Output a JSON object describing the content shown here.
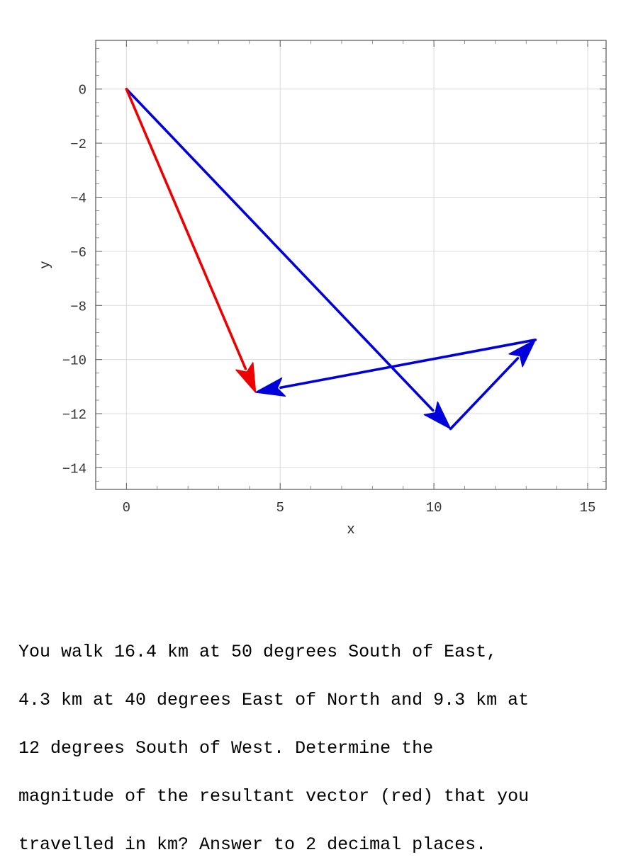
{
  "chart_data": {
    "type": "vector-plot",
    "xlabel": "x",
    "ylabel": "y",
    "xlim": [
      -1,
      15.6
    ],
    "ylim": [
      -14.8,
      1.8
    ],
    "x_ticks": [
      "0",
      "5",
      "10",
      "15"
    ],
    "y_ticks": [
      "0",
      "-2",
      "-4",
      "-6",
      "-8",
      "-10",
      "-12",
      "-14"
    ],
    "grid": true,
    "vectors": [
      {
        "role": "component",
        "color": "#0000dd",
        "start": [
          0,
          0
        ],
        "end": [
          10.54,
          -12.56
        ]
      },
      {
        "role": "component",
        "color": "#0000dd",
        "start": [
          10.54,
          -12.56
        ],
        "end": [
          13.3,
          -9.27
        ]
      },
      {
        "role": "component",
        "color": "#0000dd",
        "start": [
          13.3,
          -9.27
        ],
        "end": [
          4.2,
          -11.21
        ]
      },
      {
        "role": "resultant",
        "color": "#ee0000",
        "start": [
          0,
          0
        ],
        "end": [
          4.2,
          -11.21
        ]
      }
    ]
  },
  "question": {
    "lines": [
      "You walk 16.4 km at 50 degrees South of East,",
      "4.3 km at 40 degrees East of North and 9.3 km at",
      "12 degrees South of West.  Determine the",
      "magnitude of the resultant vector (red) that you",
      "travelled in km? Answer to 2 decimal places."
    ]
  }
}
